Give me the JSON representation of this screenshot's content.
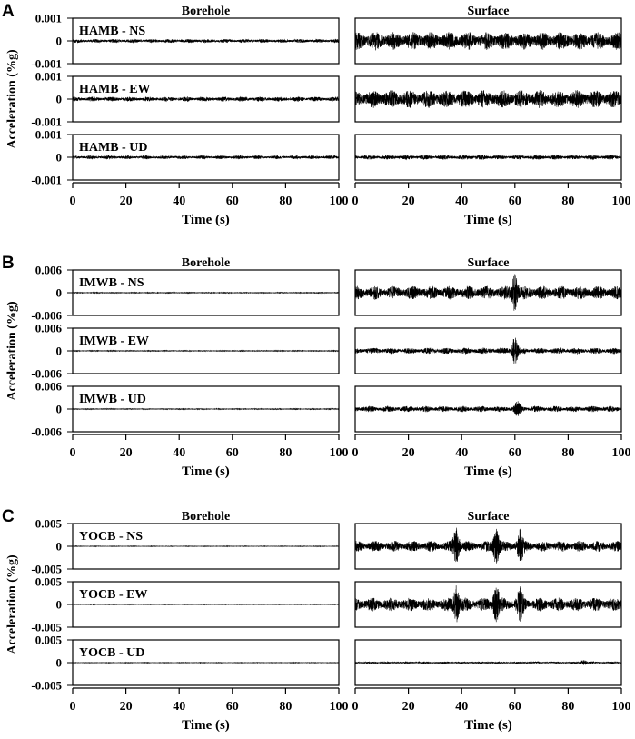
{
  "figure": {
    "x_tick_labels": [
      "0",
      "20",
      "40",
      "60",
      "80",
      "100"
    ],
    "xlabel": "Time (s)",
    "ylabel": "Acceleration (%g)",
    "column_titles": [
      "Borehole",
      "Surface"
    ]
  },
  "chart_data": [
    {
      "type": "line",
      "panel_label": "A",
      "station": "HAMB",
      "x_range": [
        0,
        100
      ],
      "y_range": [
        -0.001,
        0.001
      ],
      "y_tick_labels": [
        "0.001",
        "0",
        "-0.001"
      ],
      "xlabel": "Time (s)",
      "ylabel": "Acceleration (%g)",
      "columns": [
        "Borehole",
        "Surface"
      ],
      "components": [
        {
          "label": "HAMB - NS",
          "borehole_amplitude": 8e-05,
          "surface_amplitude": 0.0004,
          "events": []
        },
        {
          "label": "HAMB - EW",
          "borehole_amplitude": 0.0001,
          "surface_amplitude": 0.0004,
          "events": []
        },
        {
          "label": "HAMB - UD",
          "borehole_amplitude": 8e-05,
          "surface_amplitude": 0.0001,
          "events": []
        }
      ]
    },
    {
      "type": "line",
      "panel_label": "B",
      "station": "IMWB",
      "x_range": [
        0,
        100
      ],
      "y_range": [
        -0.006,
        0.006
      ],
      "y_tick_labels": [
        "0.006",
        "0",
        "-0.006"
      ],
      "xlabel": "Time (s)",
      "ylabel": "Acceleration (%g)",
      "columns": [
        "Borehole",
        "Surface"
      ],
      "components": [
        {
          "label": "IMWB - NS",
          "borehole_amplitude": 0.0001,
          "surface_amplitude": 0.0018,
          "events": [
            {
              "t": 60,
              "peak": 0.0042
            }
          ]
        },
        {
          "label": "IMWB - EW",
          "borehole_amplitude": 0.0001,
          "surface_amplitude": 0.0008,
          "events": [
            {
              "t": 60,
              "peak": 0.0035
            }
          ]
        },
        {
          "label": "IMWB - UD",
          "borehole_amplitude": 0.0001,
          "surface_amplitude": 0.0008,
          "events": [
            {
              "t": 61,
              "peak": 0.0015
            }
          ]
        }
      ]
    },
    {
      "type": "line",
      "panel_label": "C",
      "station": "YOCB",
      "x_range": [
        0,
        100
      ],
      "y_range": [
        -0.005,
        0.005
      ],
      "y_tick_labels": [
        "0.005",
        "0",
        "-0.005"
      ],
      "xlabel": "Time (s)",
      "ylabel": "Acceleration (%g)",
      "columns": [
        "Borehole",
        "Surface"
      ],
      "components": [
        {
          "label": "YOCB - NS",
          "borehole_amplitude": 5e-05,
          "surface_amplitude": 0.0012,
          "events": [
            {
              "t": 38,
              "peak": 0.0035
            },
            {
              "t": 53,
              "peak": 0.0035
            },
            {
              "t": 62,
              "peak": 0.003
            }
          ]
        },
        {
          "label": "YOCB - EW",
          "borehole_amplitude": 5e-05,
          "surface_amplitude": 0.0015,
          "events": [
            {
              "t": 38,
              "peak": 0.0035
            },
            {
              "t": 53,
              "peak": 0.0035
            },
            {
              "t": 62,
              "peak": 0.0028
            }
          ]
        },
        {
          "label": "YOCB - UD",
          "borehole_amplitude": 5e-05,
          "surface_amplitude": 0.0002,
          "events": [
            {
              "t": 86,
              "peak": 0.0005
            }
          ]
        }
      ]
    }
  ]
}
